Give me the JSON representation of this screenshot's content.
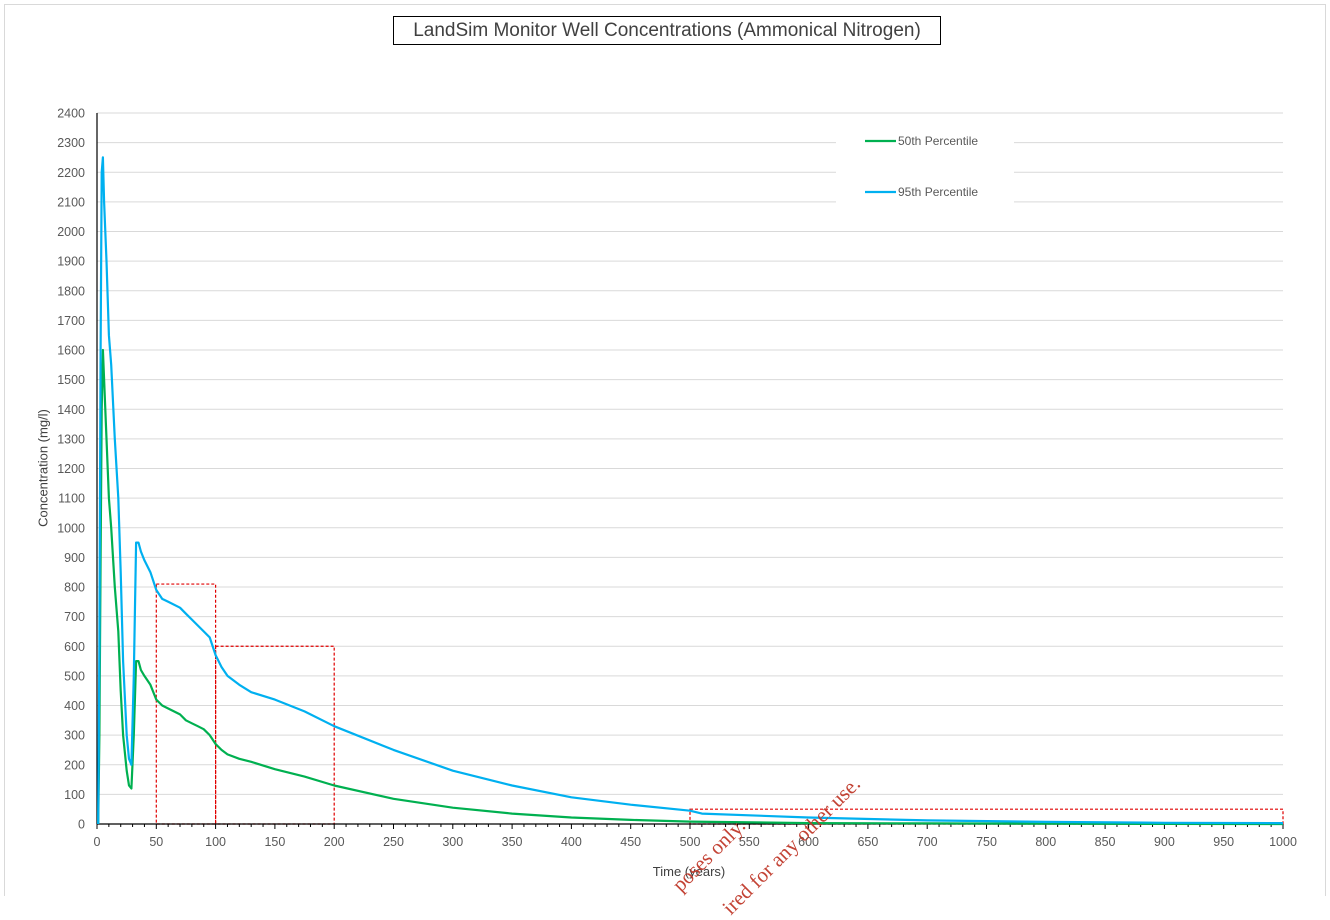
{
  "watermark": {
    "line1": "poses only.",
    "line2": "ired for any other use."
  },
  "chart_data": {
    "type": "line",
    "title": "LandSim Monitor Well Concentrations (Ammonical Nitrogen)",
    "xlabel": "Time (years)",
    "ylabel": "Concentration (mg/l)",
    "xlim": [
      0,
      1000
    ],
    "ylim": [
      0,
      2400
    ],
    "xticks": [
      0,
      50,
      100,
      150,
      200,
      250,
      300,
      350,
      400,
      450,
      500,
      550,
      600,
      650,
      700,
      750,
      800,
      850,
      900,
      950,
      1000
    ],
    "yticks": [
      0,
      100,
      200,
      300,
      400,
      500,
      600,
      700,
      800,
      900,
      1000,
      1100,
      1200,
      1300,
      1400,
      1500,
      1600,
      1700,
      1800,
      1900,
      2000,
      2100,
      2200,
      2300,
      2400
    ],
    "grid": true,
    "legend_position": "top-right",
    "series": [
      {
        "name": "50th Percentile",
        "color": "#00b050",
        "x": [
          1,
          2,
          3,
          4,
          5,
          6,
          8,
          10,
          12,
          15,
          18,
          20,
          22,
          25,
          27,
          29,
          31,
          33,
          35,
          37,
          40,
          45,
          50,
          55,
          60,
          70,
          75,
          80,
          85,
          90,
          95,
          100,
          105,
          110,
          120,
          130,
          150,
          175,
          200,
          250,
          300,
          350,
          400,
          450,
          500,
          600,
          700,
          800,
          900,
          1000
        ],
        "y": [
          0,
          300,
          900,
          1400,
          1600,
          1500,
          1300,
          1100,
          1000,
          800,
          650,
          450,
          300,
          180,
          130,
          120,
          300,
          550,
          550,
          520,
          500,
          470,
          420,
          400,
          390,
          370,
          350,
          340,
          330,
          320,
          300,
          270,
          250,
          235,
          220,
          210,
          185,
          160,
          130,
          85,
          55,
          35,
          22,
          14,
          8,
          3,
          2,
          1,
          0.5,
          0
        ]
      },
      {
        "name": "95th Percentile",
        "color": "#00b0f0",
        "x": [
          1,
          2,
          3,
          4,
          5,
          6,
          8,
          10,
          12,
          15,
          18,
          20,
          22,
          25,
          27,
          29,
          31,
          33,
          35,
          37,
          40,
          45,
          50,
          55,
          60,
          70,
          75,
          80,
          85,
          90,
          95,
          100,
          105,
          110,
          120,
          130,
          150,
          175,
          200,
          250,
          300,
          350,
          400,
          450,
          500,
          510,
          600,
          700,
          800,
          900,
          1000
        ],
        "y": [
          0,
          600,
          1600,
          2200,
          2250,
          2100,
          1900,
          1650,
          1550,
          1300,
          1100,
          850,
          550,
          300,
          220,
          200,
          500,
          950,
          950,
          920,
          890,
          850,
          790,
          760,
          750,
          730,
          710,
          690,
          670,
          650,
          630,
          570,
          530,
          500,
          470,
          445,
          420,
          380,
          330,
          250,
          180,
          130,
          90,
          65,
          45,
          35,
          22,
          12,
          7,
          4,
          3
        ]
      }
    ],
    "annotation_boxes": [
      {
        "x0": 50,
        "x1": 100,
        "y0": 0,
        "y1": 810
      },
      {
        "x0": 100,
        "x1": 200,
        "y0": 0,
        "y1": 600
      },
      {
        "x0": 500,
        "x1": 1000,
        "y0": 0,
        "y1": 50
      }
    ]
  }
}
